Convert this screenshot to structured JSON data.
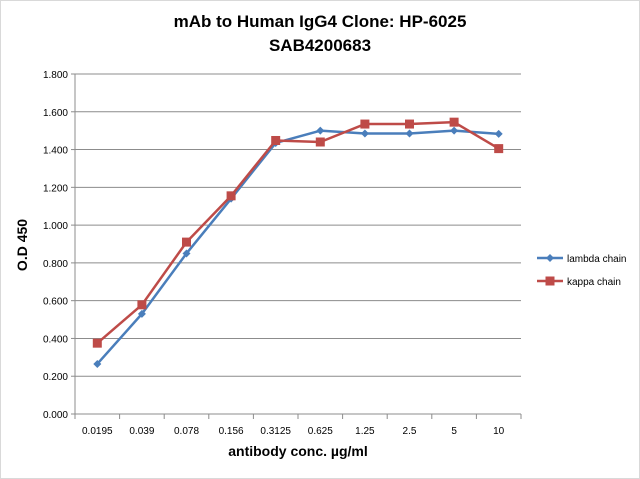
{
  "chart_data": {
    "type": "line",
    "title": "mAb to Human IgG4 Clone: HP-6025",
    "subtitle": "SAB4200683",
    "xlabel": "antibody conc. µg/ml",
    "ylabel": "O.D 450",
    "categories": [
      "0.0195",
      "0.039",
      "0.078",
      "0.156",
      "0.3125",
      "0.625",
      "1.25",
      "2.5",
      "5",
      "10"
    ],
    "ylim": [
      0,
      1.8
    ],
    "yticks": [
      "0.000",
      "0.200",
      "0.400",
      "0.600",
      "0.800",
      "1.000",
      "1.200",
      "1.400",
      "1.600",
      "1.800"
    ],
    "grid": true,
    "legend_position": "right",
    "series": [
      {
        "name": "lambda chain",
        "color": "#4a7ebb",
        "marker": "diamond",
        "values": [
          0.265,
          0.53,
          0.85,
          1.14,
          1.435,
          1.5,
          1.485,
          1.485,
          1.5,
          1.483
        ]
      },
      {
        "name": "kappa chain",
        "color": "#be4b48",
        "marker": "square",
        "values": [
          0.375,
          0.578,
          0.91,
          1.155,
          1.448,
          1.44,
          1.535,
          1.535,
          1.545,
          1.405
        ]
      }
    ]
  }
}
